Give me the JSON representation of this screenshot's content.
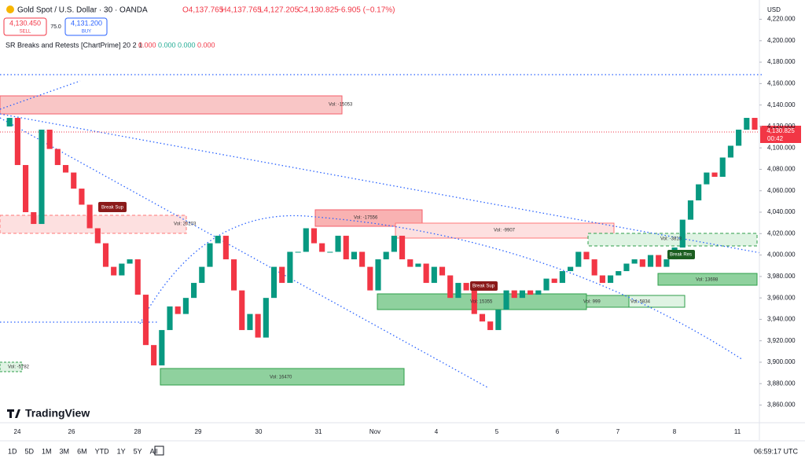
{
  "header": {
    "symbol": "Gold Spot / U.S. Dollar · 30 · OANDA",
    "open": "O4,137.765",
    "high": "H4,137.765",
    "low": "L4,127.205",
    "close": "C4,130.825",
    "change": "−6.905 (−0.17%)",
    "sell_price": "4,130.450",
    "sell": "SELL",
    "spread": "75.0",
    "buy_price": "4,131.200",
    "buy": "BUY"
  },
  "indicator": {
    "name": "SR Breaks and Retests [ChartPrime] 20 2 1",
    "values": [
      "0.000",
      "0.000",
      "0.000",
      "0.000"
    ]
  },
  "chart_data": {
    "type": "candlestick",
    "currency": "USD",
    "price_label": "4,130.825",
    "countdown": "00:42",
    "ylim": [
      3845,
      4238
    ],
    "yticks": [
      {
        "value": 3860,
        "label": "3,860.000"
      },
      {
        "value": 3880,
        "label": "3,880.000"
      },
      {
        "value": 3900,
        "label": "3,900.000"
      },
      {
        "value": 3920,
        "label": "3,920.000"
      },
      {
        "value": 3940,
        "label": "3,940.000"
      },
      {
        "value": 3960,
        "label": "3,960.000"
      },
      {
        "value": 3980,
        "label": "3,980.000"
      },
      {
        "value": 4000,
        "label": "4,000.000"
      },
      {
        "value": 4020,
        "label": "4,020.000"
      },
      {
        "value": 4040,
        "label": "4,040.000"
      },
      {
        "value": 4060,
        "label": "4,060.000"
      },
      {
        "value": 4080,
        "label": "4,080.000"
      },
      {
        "value": 4100,
        "label": "4,100.000"
      },
      {
        "value": 4120,
        "label": "4,120.000"
      },
      {
        "value": 4140,
        "label": "4,140.000"
      },
      {
        "value": 4160,
        "label": "4,160.000"
      },
      {
        "value": 4180,
        "label": "4,180.000"
      },
      {
        "value": 4200,
        "label": "4,200.000"
      },
      {
        "value": 4220,
        "label": "4,220.000"
      }
    ],
    "x_labels": [
      "24",
      "26",
      "28",
      "29",
      "30",
      "31",
      "Nov",
      "4",
      "5",
      "6",
      "7",
      "8",
      "11"
    ],
    "closes": [
      4120,
      4128,
      4084,
      4040,
      4029,
      4117,
      4099,
      4084,
      4077,
      4062,
      4047,
      4025,
      4011,
      3989,
      3981,
      3992,
      3996,
      3963,
      3916,
      3897,
      3930,
      3952,
      3945,
      3960,
      3974,
      3989,
      4011,
      4018,
      3996,
      3967,
      3930,
      3945,
      3923,
      3960,
      3989,
      3974,
      4003,
      4003,
      4025,
      4011,
      4003,
      4003,
      4018,
      3996,
      4003,
      3989,
      3967,
      3996,
      4003,
      4018,
      3996,
      3989,
      3992,
      3974,
      3989,
      3981,
      3960,
      3974,
      3967,
      3945,
      3938,
      3930,
      3949,
      3967,
      3960,
      3967,
      3963,
      3967,
      3978,
      3974,
      3985,
      3989,
      4003,
      3996,
      3981,
      3974,
      3981,
      3985,
      3992,
      3996,
      3989,
      4000,
      3989,
      3996,
      4007,
      4033,
      4051,
      4066,
      4077,
      4073,
      4091,
      4102,
      4117,
      4128,
      4117
    ],
    "annotations": {
      "vol": [
        "Vol: -15053",
        "Vol: 20203",
        "Vol: -17556",
        "Vol: -9907",
        "Vol: 15355",
        "Vol: 999",
        "Vol: 5834",
        "Vol: -3813",
        "Vol: 13698",
        "Vol: 16470",
        "Vol: -5782"
      ],
      "breaks": [
        "Break Sup",
        "Break Sup",
        "Break Res"
      ]
    }
  },
  "footer": {
    "ranges": [
      "1D",
      "5D",
      "1M",
      "3M",
      "6M",
      "YTD",
      "1Y",
      "5Y",
      "All"
    ],
    "time": "06:59:17 UTC",
    "logo": "TradingView"
  }
}
